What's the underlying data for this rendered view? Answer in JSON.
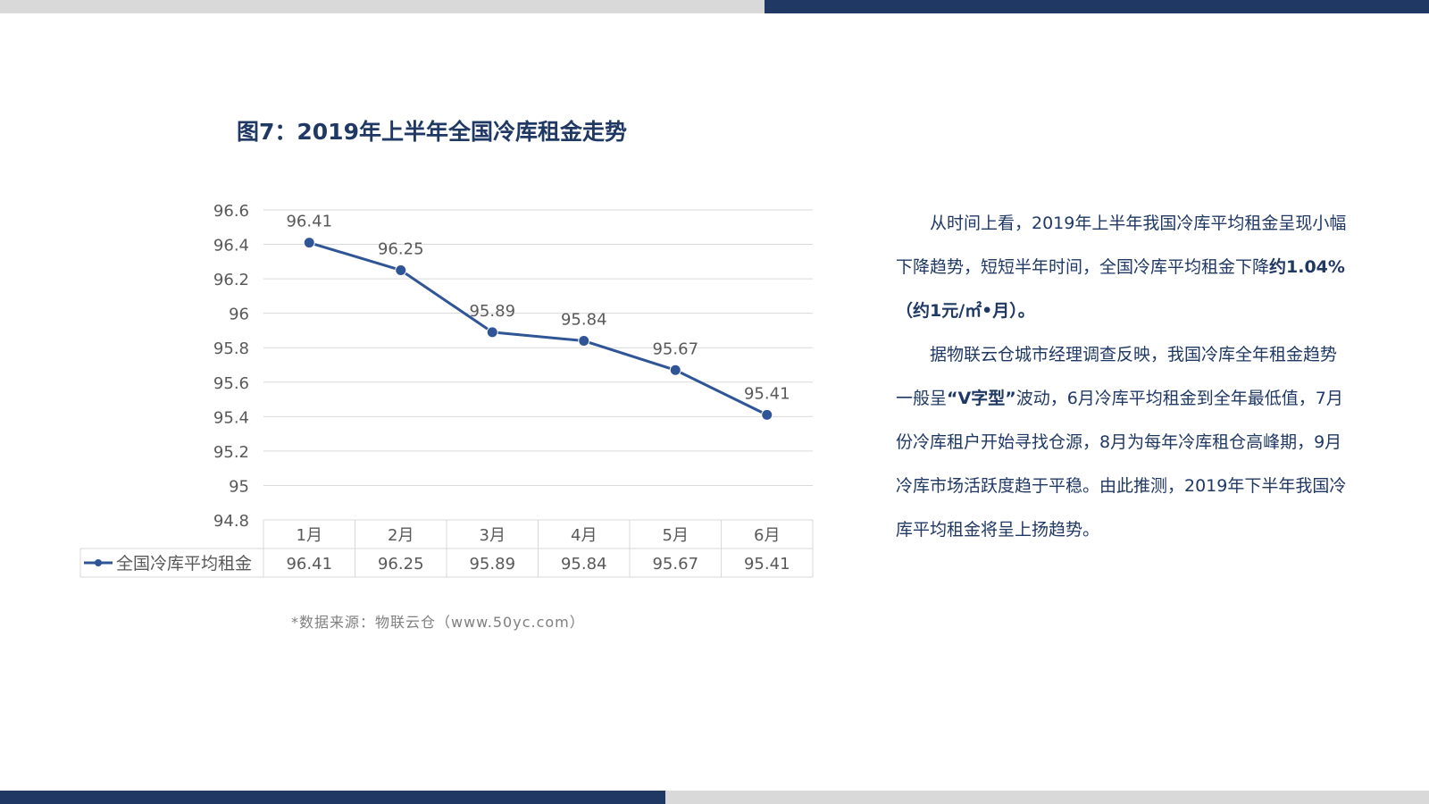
{
  "figure": {
    "title": "图7：2019年上半年全国冷库租金走势",
    "source_note": "*数据来源：物联云仓（www.50yc.com）"
  },
  "chart_data": {
    "type": "line",
    "title": "图7：2019年上半年全国冷库租金走势",
    "categories": [
      "1月",
      "2月",
      "3月",
      "4月",
      "5月",
      "6月"
    ],
    "series": [
      {
        "name": "全国冷库平均租金",
        "values": [
          96.41,
          96.25,
          95.89,
          95.84,
          95.67,
          95.41
        ],
        "color": "#2f5597"
      }
    ],
    "y_ticks": [
      "94.8",
      "95",
      "95.2",
      "95.4",
      "95.6",
      "95.8",
      "96",
      "96.2",
      "96.4",
      "96.6"
    ],
    "ylim": [
      94.8,
      96.6
    ],
    "y_step": 0.2,
    "grid": true,
    "legend": "data-table-left",
    "data_table": true,
    "data_labels": [
      "96.41",
      "96.25",
      "95.89",
      "95.84",
      "95.67",
      "95.41"
    ]
  },
  "description": {
    "p1_before": "从时间上看，2019年上半年我国冷库平均租金呈现小幅下降趋势，短短半年时间，全国冷库平均租金下降",
    "p1_bold": "约1.04%（约1元/㎡•月）。",
    "p2_before": "据物联云仓城市经理调查反映，我国冷库全年租金趋势一般呈",
    "p2_bold": "“V字型”",
    "p2_after": "波动，6月冷库平均租金到全年最低值，7月份冷库租户开始寻找仓源，8月为每年冷库租仓高峰期，9月冷库市场活跃度趋于平稳。由此推测，2019年下半年我国冷库平均租金将呈上扬趋势。"
  },
  "colors": {
    "accent": "#1f3864",
    "series": "#2f5597",
    "grid": "#d9d9d9",
    "muted_text": "#595959",
    "source_text": "#7f7f7f",
    "bar_gray": "#d9d9d9"
  }
}
